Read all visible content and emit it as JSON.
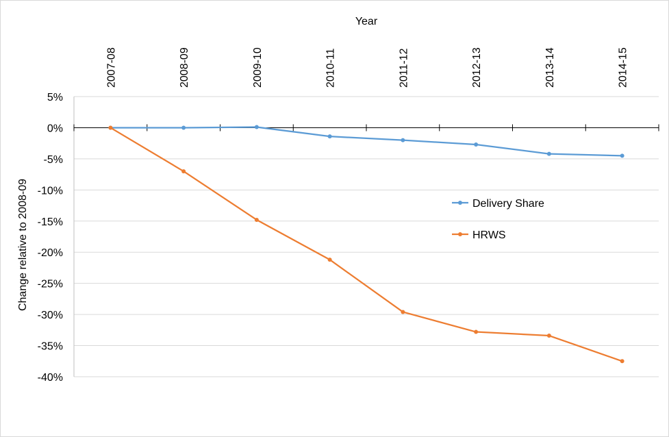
{
  "chart_data": {
    "type": "line",
    "title": "",
    "xlabel": "Year",
    "ylabel": "Change relative to 2008-09",
    "categories": [
      "2007-08",
      "2008-09",
      "2009-10",
      "2010-11",
      "2011-12",
      "2012-13",
      "2013-14",
      "2014-15"
    ],
    "ylim": [
      -40,
      5
    ],
    "yticks": [
      5,
      0,
      -5,
      -10,
      -15,
      -20,
      -25,
      -30,
      -35,
      -40
    ],
    "ytick_labels": [
      "5%",
      "0%",
      "-5%",
      "-10%",
      "-15%",
      "-20%",
      "-25%",
      "-30%",
      "-35%",
      "-40%"
    ],
    "x_axis_position": "top",
    "grid": "horizontal",
    "legend_position": "right-center",
    "series": [
      {
        "name": "Delivery Share",
        "color": "#5b9bd5",
        "values": [
          0,
          0,
          0.1,
          -1.4,
          -2,
          -2.7,
          -4.2,
          -4.5
        ]
      },
      {
        "name": "HRWS",
        "color": "#ed7d31",
        "values": [
          0,
          -7,
          -14.8,
          -21.2,
          -29.6,
          -32.8,
          -33.4,
          -37.5
        ]
      }
    ]
  }
}
